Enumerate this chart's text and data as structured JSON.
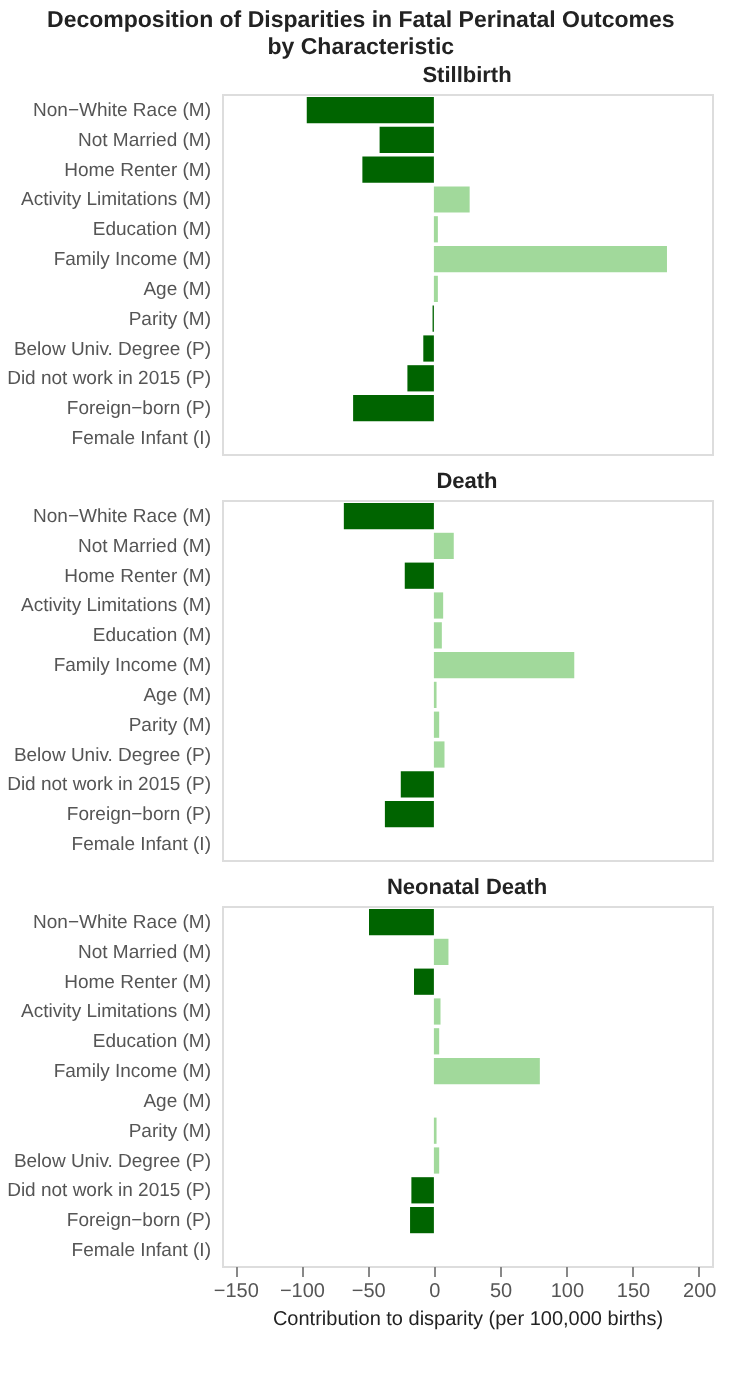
{
  "chart_data": [
    {
      "type": "bar",
      "orientation": "horizontal",
      "title": "Decomposition of Disparities in Fatal Perinatal Outcomes by Characteristic",
      "subtitle": "Stillbirth",
      "categories": [
        "Non−White Race (M)",
        "Not Married (M)",
        "Home Renter (M)",
        "Activity Limitations (M)",
        "Education (M)",
        "Family Income (M)",
        "Age (M)",
        "Parity (M)",
        "Below Univ. Degree (P)",
        "Did not work in 2015 (P)",
        "Foreign−born (P)",
        "Female Infant (I)"
      ],
      "values": [
        -96,
        -41,
        -54,
        27,
        3,
        176,
        3,
        -1,
        -8,
        -20,
        -61,
        0
      ],
      "colors": [
        "#006400",
        "#006400",
        "#006400",
        "#a1d99b",
        "#a1d99b",
        "#a1d99b",
        "#a1d99b",
        "#006400",
        "#006400",
        "#006400",
        "#006400",
        "#a1d99b"
      ],
      "xlim": [
        -160,
        210
      ],
      "xticks": [
        -150,
        -100,
        -50,
        0,
        50,
        100,
        150,
        200
      ],
      "tick_labels": "y",
      "grid": false
    },
    {
      "type": "bar",
      "orientation": "horizontal",
      "subtitle": "Death",
      "categories": [
        "Non−White Race (M)",
        "Not Married (M)",
        "Home Renter (M)",
        "Activity Limitations (M)",
        "Education (M)",
        "Family Income (M)",
        "Age (M)",
        "Parity (M)",
        "Below Univ. Degree (P)",
        "Did not work in 2015 (P)",
        "Foreign−born (P)",
        "Female Infant (I)"
      ],
      "values": [
        -68,
        15,
        -22,
        7,
        6,
        106,
        2,
        4,
        8,
        -25,
        -37,
        0
      ],
      "colors": [
        "#006400",
        "#a1d99b",
        "#006400",
        "#a1d99b",
        "#a1d99b",
        "#a1d99b",
        "#a1d99b",
        "#a1d99b",
        "#a1d99b",
        "#006400",
        "#006400",
        "#a1d99b"
      ],
      "xlim": [
        -160,
        210
      ],
      "xticks": [
        -150,
        -100,
        -50,
        0,
        50,
        100,
        150,
        200
      ],
      "tick_labels": "y",
      "grid": false
    },
    {
      "type": "bar",
      "orientation": "horizontal",
      "subtitle": "Neonatal Death",
      "xlabel": "Contribution to disparity (per 100,000 births)",
      "categories": [
        "Non−White Race (M)",
        "Not Married (M)",
        "Home Renter (M)",
        "Activity Limitations (M)",
        "Education (M)",
        "Family Income (M)",
        "Age (M)",
        "Parity (M)",
        "Below Univ. Degree (P)",
        "Did not work in 2015 (P)",
        "Foreign−born (P)",
        "Female Infant (I)"
      ],
      "values": [
        -49,
        11,
        -15,
        5,
        4,
        80,
        0,
        2,
        4,
        -17,
        -18,
        0
      ],
      "colors": [
        "#006400",
        "#a1d99b",
        "#006400",
        "#a1d99b",
        "#a1d99b",
        "#a1d99b",
        "#a1d99b",
        "#a1d99b",
        "#a1d99b",
        "#006400",
        "#006400",
        "#a1d99b"
      ],
      "xlim": [
        -160,
        210
      ],
      "xticks": [
        -150,
        -100,
        -50,
        0,
        50,
        100,
        150,
        200
      ],
      "grid": false
    }
  ]
}
